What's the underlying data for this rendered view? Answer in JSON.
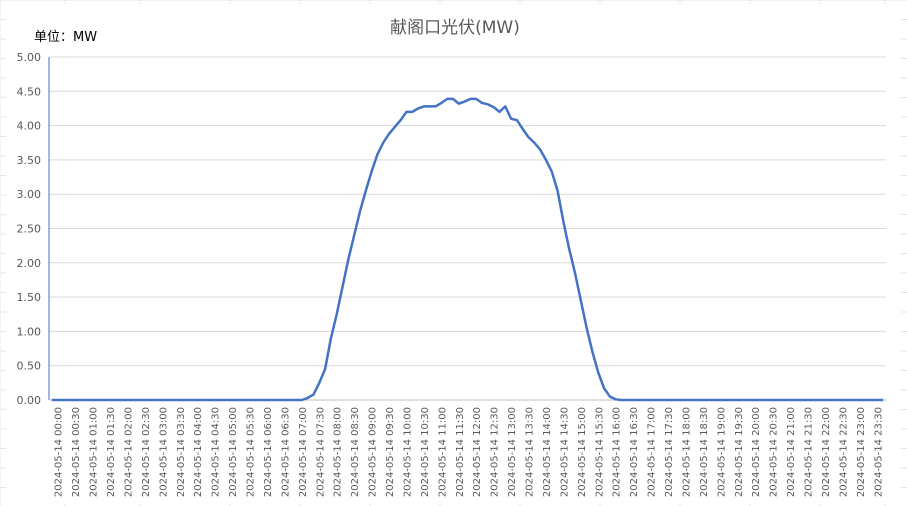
{
  "chart_data": {
    "type": "line",
    "title": "献阁口光伏(MW)",
    "unit_label": "单位：MW",
    "xlabel": "",
    "ylabel": "",
    "ylim": [
      0,
      5
    ],
    "y_ticks": [
      "0.00",
      "0.50",
      "1.00",
      "1.50",
      "2.00",
      "2.50",
      "3.00",
      "3.50",
      "4.00",
      "4.50",
      "5.00"
    ],
    "grid": true,
    "legend": "none",
    "line_color": "#4472c4",
    "x_tick_labels": [
      "2024-05-14 00:00",
      "2024-05-14 00:30",
      "2024-05-14 01:00",
      "2024-05-14 01:30",
      "2024-05-14 02:00",
      "2024-05-14 02:30",
      "2024-05-14 03:00",
      "2024-05-14 03:30",
      "2024-05-14 04:00",
      "2024-05-14 04:30",
      "2024-05-14 05:00",
      "2024-05-14 05:30",
      "2024-05-14 06:00",
      "2024-05-14 06:30",
      "2024-05-14 07:00",
      "2024-05-14 07:30",
      "2024-05-14 08:00",
      "2024-05-14 08:30",
      "2024-05-14 09:00",
      "2024-05-14 09:30",
      "2024-05-14 10:00",
      "2024-05-14 10:30",
      "2024-05-14 11:00",
      "2024-05-14 11:30",
      "2024-05-14 12:00",
      "2024-05-14 12:30",
      "2024-05-14 13:00",
      "2024-05-14 13:30",
      "2024-05-14 14:00",
      "2024-05-14 14:30",
      "2024-05-14 15:00",
      "2024-05-14 15:30",
      "2024-05-14 16:00",
      "2024-05-14 16:30",
      "2024-05-14 17:00",
      "2024-05-14 17:30",
      "2024-05-14 18:00",
      "2024-05-14 18:30",
      "2024-05-14 19:00",
      "2024-05-14 19:30",
      "2024-05-14 20:00",
      "2024-05-14 20:30",
      "2024-05-14 21:00",
      "2024-05-14 21:30",
      "2024-05-14 22:00",
      "2024-05-14 22:30",
      "2024-05-14 23:00",
      "2024-05-14 23:30"
    ],
    "series": [
      {
        "values": [
          0,
          0,
          0,
          0,
          0,
          0,
          0,
          0,
          0,
          0,
          0,
          0,
          0,
          0,
          0,
          0,
          0,
          0,
          0,
          0,
          0,
          0,
          0,
          0,
          0,
          0,
          0,
          0,
          0,
          0,
          0,
          0,
          0,
          0,
          0,
          0,
          0,
          0,
          0,
          0,
          0,
          0,
          0,
          0,
          0.03,
          0.08,
          0.25,
          0.45,
          0.9,
          1.25,
          1.65,
          2.05,
          2.4,
          2.75,
          3.05,
          3.33,
          3.58,
          3.75,
          3.88,
          3.98,
          4.08,
          4.2,
          4.2,
          4.25,
          4.28,
          4.28,
          4.28,
          4.33,
          4.39,
          4.39,
          4.32,
          4.35,
          4.39,
          4.39,
          4.33,
          4.31,
          4.27,
          4.2,
          4.28,
          4.1,
          4.08,
          3.95,
          3.83,
          3.75,
          3.65,
          3.5,
          3.33,
          3.05,
          2.6,
          2.2,
          1.85,
          1.45,
          1.05,
          0.7,
          0.4,
          0.17,
          0.05,
          0.01,
          0,
          0,
          0,
          0,
          0,
          0,
          0,
          0,
          0,
          0,
          0,
          0,
          0,
          0,
          0,
          0,
          0,
          0,
          0,
          0,
          0,
          0,
          0,
          0,
          0,
          0,
          0,
          0,
          0,
          0,
          0,
          0,
          0,
          0,
          0,
          0,
          0,
          0,
          0,
          0,
          0,
          0,
          0,
          0,
          0,
          0
        ]
      }
    ]
  }
}
